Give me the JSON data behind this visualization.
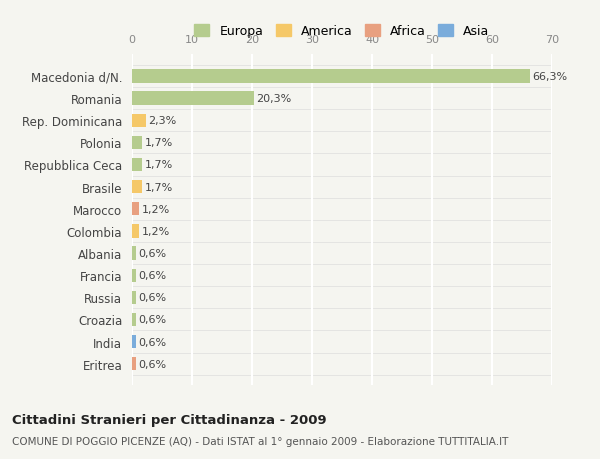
{
  "categories": [
    "Eritrea",
    "India",
    "Croazia",
    "Russia",
    "Francia",
    "Albania",
    "Colombia",
    "Marocco",
    "Brasile",
    "Repubblica Ceca",
    "Polonia",
    "Rep. Dominicana",
    "Romania",
    "Macedonia d/N."
  ],
  "values": [
    0.6,
    0.6,
    0.6,
    0.6,
    0.6,
    0.6,
    1.2,
    1.2,
    1.7,
    1.7,
    1.7,
    2.3,
    20.3,
    66.3
  ],
  "bar_colors": [
    "#e8a080",
    "#7aacdb",
    "#b5cc8e",
    "#b5cc8e",
    "#b5cc8e",
    "#b5cc8e",
    "#f5c868",
    "#e8a080",
    "#f5c868",
    "#b5cc8e",
    "#b5cc8e",
    "#f5c868",
    "#b5cc8e",
    "#b5cc8e"
  ],
  "labels": [
    "0,6%",
    "0,6%",
    "0,6%",
    "0,6%",
    "0,6%",
    "0,6%",
    "1,2%",
    "1,2%",
    "1,7%",
    "1,7%",
    "1,7%",
    "2,3%",
    "20,3%",
    "66,3%"
  ],
  "legend_labels": [
    "Europa",
    "America",
    "Africa",
    "Asia"
  ],
  "legend_colors": [
    "#b5cc8e",
    "#f5c868",
    "#e8a080",
    "#7aacdb"
  ],
  "title": "Cittadini Stranieri per Cittadinanza - 2009",
  "subtitle": "COMUNE DI POGGIO PICENZE (AQ) - Dati ISTAT al 1° gennaio 2009 - Elaborazione TUTTITALIA.IT",
  "xlim": [
    0,
    70
  ],
  "xticks": [
    0,
    10,
    20,
    30,
    40,
    50,
    60,
    70
  ],
  "background_color": "#f5f5f0",
  "grid_color": "#ffffff",
  "bar_height": 0.6
}
